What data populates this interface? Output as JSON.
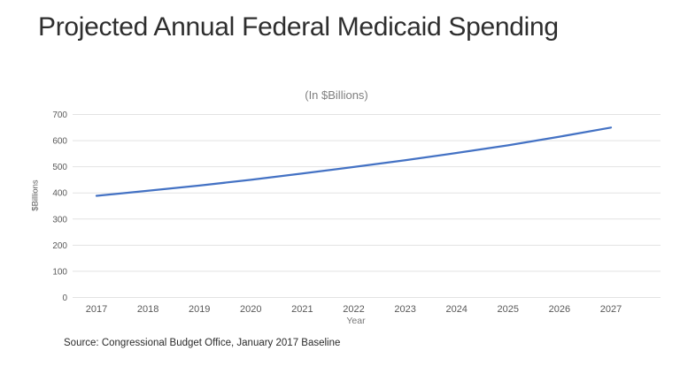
{
  "page": {
    "title": "Projected Annual Federal Medicaid Spending",
    "source_note": "Source: Congressional Budget Office, January 2017 Baseline"
  },
  "chart_data": {
    "type": "line",
    "title": "(In $Billions)",
    "xlabel": "Year",
    "ylabel": "$Billions",
    "categories": [
      2017,
      2018,
      2019,
      2020,
      2021,
      2022,
      2023,
      2024,
      2025,
      2026,
      2027
    ],
    "values": [
      389,
      408,
      428,
      450,
      474,
      499,
      525,
      553,
      582,
      615,
      650
    ],
    "ylim": [
      0,
      700
    ],
    "ytick_interval": 100,
    "grid": "horizontal",
    "legend": "none",
    "colors": {
      "line": "#4472C4",
      "gridline": "#e2e2e2",
      "tick_label": "#595959"
    }
  }
}
